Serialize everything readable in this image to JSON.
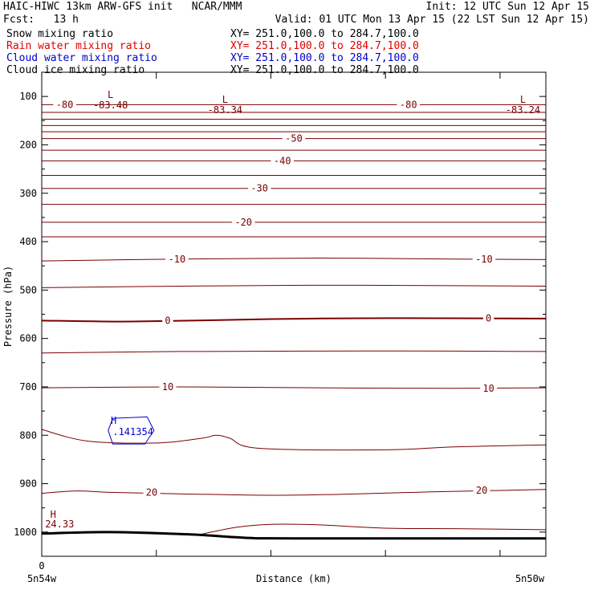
{
  "header": {
    "line1_left": "HAIC-HIWC 13km ARW-GFS init   NCAR/MMM",
    "line1_right": "Init: 12 UTC Sun 12 Apr 15",
    "line2_left": "Fcst:   13 h",
    "line2_right": "Valid: 01 UTC Mon 13 Apr 15 (22 LST Sun 12 Apr 15)",
    "fields": [
      {
        "name": "Snow mixing ratio",
        "xy": "XY= 251.0,100.0 to 284.7,100.0",
        "color": "#000000"
      },
      {
        "name": "Rain water mixing ratio",
        "xy": "XY= 251.0,100.0 to 284.7,100.0",
        "color": "#e00000"
      },
      {
        "name": "Cloud water mixing ratio",
        "xy": "XY= 251.0,100.0 to 284.7,100.0",
        "color": "#0000cc"
      },
      {
        "name": "Cloud ice mixing ratio",
        "xy": "XY= 251.0,100.0 to 284.7,100.0",
        "color": "#000000"
      }
    ]
  },
  "chart_data": {
    "type": "line",
    "xlabel": "Distance (km)",
    "ylabel": "Pressure (hPa)",
    "x_ticks": [
      {
        "value": 0,
        "label": "0"
      }
    ],
    "x_end_labels": {
      "left": "5n54w",
      "right": "5n50w"
    },
    "xlim": [
      0,
      22
    ],
    "ylim": [
      1050,
      50
    ],
    "y_ticks": [
      100,
      200,
      300,
      400,
      500,
      600,
      700,
      800,
      900,
      1000
    ],
    "grid": false,
    "colors": {
      "contour": "#7a0000",
      "cloud_water": "#0000cc",
      "terrain": "#000000"
    },
    "contours": [
      {
        "points": [
          [
            0,
            117
          ],
          [
            22,
            117
          ]
        ],
        "label": "-80",
        "label_at": [
          [
            1,
            117
          ],
          [
            16,
            117
          ]
        ]
      },
      {
        "points": [
          [
            0,
            133
          ],
          [
            22,
            133
          ]
        ]
      },
      {
        "points": [
          [
            0,
            147
          ],
          [
            22,
            147
          ]
        ]
      },
      {
        "points": [
          [
            0,
            160
          ],
          [
            22,
            160
          ]
        ]
      },
      {
        "points": [
          [
            0,
            173
          ],
          [
            22,
            173
          ]
        ]
      },
      {
        "points": [
          [
            0,
            187
          ],
          [
            22,
            187
          ]
        ],
        "label": "-50",
        "label_at": [
          [
            11,
            187
          ]
        ]
      },
      {
        "points": [
          [
            0,
            211
          ],
          [
            22,
            211
          ]
        ]
      },
      {
        "points": [
          [
            0,
            233
          ],
          [
            22,
            233
          ]
        ],
        "label": "-40",
        "label_at": [
          [
            10.5,
            233
          ]
        ]
      },
      {
        "points": [
          [
            0,
            263
          ],
          [
            22,
            263
          ]
        ]
      },
      {
        "points": [
          [
            0,
            290
          ],
          [
            22,
            290
          ]
        ],
        "label": "-30",
        "label_at": [
          [
            9.5,
            290
          ]
        ]
      },
      {
        "points": [
          [
            0,
            323
          ],
          [
            22,
            323
          ]
        ]
      },
      {
        "points": [
          [
            0,
            360
          ],
          [
            22,
            360
          ]
        ],
        "label": "-20",
        "label_at": [
          [
            8.8,
            360
          ]
        ]
      },
      {
        "points": [
          [
            0,
            390
          ],
          [
            22,
            390
          ]
        ]
      },
      {
        "points": [
          [
            0,
            440
          ],
          [
            6,
            436
          ],
          [
            12,
            434
          ],
          [
            18,
            436
          ],
          [
            22,
            437
          ]
        ],
        "label": "-10",
        "label_at": [
          [
            5.9,
            436
          ],
          [
            19.3,
            436
          ]
        ]
      },
      {
        "points": [
          [
            0,
            495
          ],
          [
            6,
            492
          ],
          [
            12,
            490
          ],
          [
            18,
            491
          ],
          [
            22,
            492
          ]
        ]
      },
      {
        "points": [
          [
            0,
            563
          ],
          [
            4,
            565
          ],
          [
            10,
            560
          ],
          [
            15,
            558
          ],
          [
            22,
            559
          ]
        ],
        "label": "0",
        "label_at": [
          [
            5.5,
            563
          ],
          [
            19.5,
            558
          ]
        ],
        "width": 2
      },
      {
        "points": [
          [
            0,
            630
          ],
          [
            6,
            627
          ],
          [
            12,
            626
          ],
          [
            18,
            626
          ],
          [
            22,
            627
          ]
        ]
      },
      {
        "points": [
          [
            0,
            702
          ],
          [
            6,
            700
          ],
          [
            12,
            702
          ],
          [
            18,
            703
          ],
          [
            22,
            702
          ]
        ],
        "label": "10",
        "label_at": [
          [
            5.5,
            700
          ],
          [
            19.5,
            703
          ]
        ]
      },
      {
        "points": [
          [
            0,
            788
          ],
          [
            2,
            812
          ],
          [
            5,
            816
          ],
          [
            7,
            806
          ],
          [
            7.6,
            800
          ],
          [
            8.2,
            806
          ],
          [
            9.5,
            827
          ],
          [
            15,
            830
          ],
          [
            18,
            824
          ],
          [
            22,
            820
          ]
        ]
      },
      {
        "points": [
          [
            0,
            920
          ],
          [
            1.5,
            915
          ],
          [
            3,
            918
          ],
          [
            6,
            921
          ],
          [
            10,
            924
          ],
          [
            13,
            922
          ],
          [
            17,
            917
          ],
          [
            22,
            912
          ]
        ],
        "label": "20",
        "label_at": [
          [
            4.8,
            918
          ],
          [
            19.2,
            914
          ]
        ]
      },
      {
        "points": [
          [
            7,
            1004
          ],
          [
            8.5,
            990
          ],
          [
            10,
            984
          ],
          [
            12,
            985
          ],
          [
            15,
            992
          ],
          [
            18,
            993
          ],
          [
            22,
            995
          ]
        ]
      }
    ],
    "terrain": [
      [
        0,
        1003
      ],
      [
        3,
        1000
      ],
      [
        6,
        1004
      ],
      [
        7,
        1006
      ],
      [
        9,
        1012
      ],
      [
        11,
        1013
      ],
      [
        22,
        1013
      ]
    ],
    "lows": [
      {
        "x": 3,
        "p": 80,
        "value": "-83.48"
      },
      {
        "x": 8,
        "p": 90,
        "value": "-83.34"
      },
      {
        "x": 21,
        "p": 90,
        "value": "-83.24"
      }
    ],
    "highs": [
      {
        "x": 0.5,
        "p": 980,
        "value": "24.33"
      }
    ],
    "cloud_water": {
      "points": [
        [
          3.1,
          765
        ],
        [
          4.6,
          762
        ],
        [
          4.9,
          790
        ],
        [
          4.5,
          818
        ],
        [
          3.1,
          818
        ],
        [
          2.9,
          790
        ],
        [
          3.1,
          765
        ]
      ],
      "center_label": "H",
      "value": ".141354",
      "label_at": [
        3,
        790
      ]
    }
  }
}
